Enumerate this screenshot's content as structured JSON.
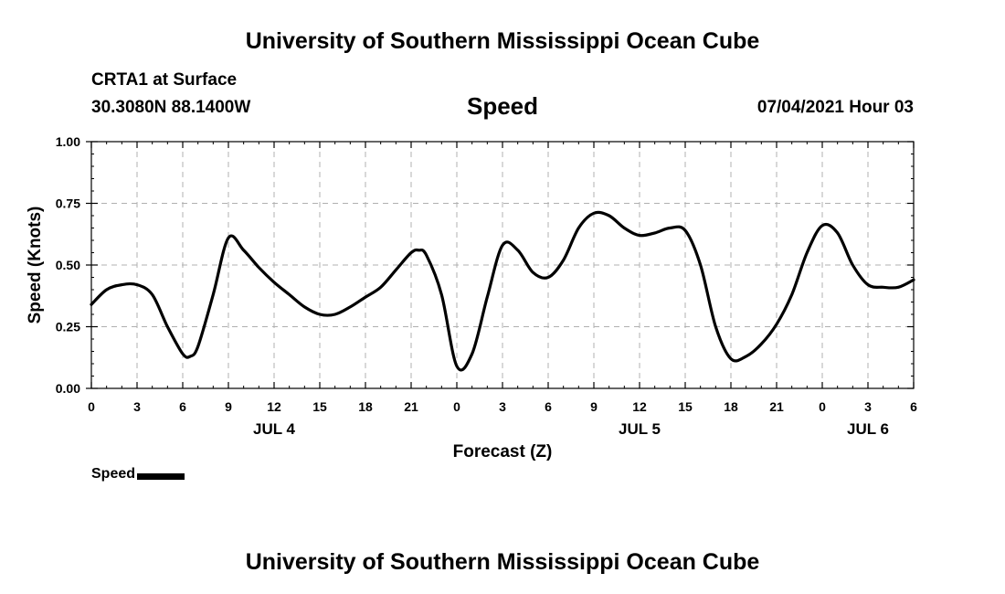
{
  "header": {
    "title": "University of Southern Mississippi Ocean Cube",
    "station": "CRTA1 at Surface",
    "coords": "30.3080N  88.1400W",
    "chart_heading": "Speed",
    "datetime": "07/04/2021 Hour 03"
  },
  "footer": {
    "title": "University of Southern Mississippi Ocean Cube"
  },
  "legend": {
    "label": "Speed"
  },
  "chart_data": {
    "type": "line",
    "title": "Speed",
    "xlabel": "Forecast (Z)",
    "ylabel": "Speed (Knots)",
    "xlim": [
      0,
      54
    ],
    "ylim": [
      0,
      1
    ],
    "grid": true,
    "legend_position": "bottom-left",
    "y_ticks": [
      0,
      0.25,
      0.5,
      0.75,
      1.0
    ],
    "y_tick_labels": [
      "0.00",
      "0.25",
      "0.50",
      "0.75",
      "1.00"
    ],
    "x_ticks": [
      0,
      3,
      6,
      9,
      12,
      15,
      18,
      21,
      24,
      27,
      30,
      33,
      36,
      39,
      42,
      45,
      48,
      51,
      54
    ],
    "x_tick_labels": [
      "0",
      "3",
      "6",
      "9",
      "12",
      "15",
      "18",
      "21",
      "0",
      "3",
      "6",
      "9",
      "12",
      "15",
      "18",
      "21",
      "0",
      "3",
      "6"
    ],
    "day_labels": [
      {
        "label": "JUL 4",
        "x": 12
      },
      {
        "label": "JUL 5",
        "x": 36
      },
      {
        "label": "JUL 6",
        "x": 51
      }
    ],
    "series": [
      {
        "name": "Speed",
        "color": "#000000",
        "x": [
          0,
          1,
          2,
          3,
          4,
          5,
          6,
          6.5,
          7,
          8,
          9,
          10,
          11,
          12,
          13,
          14,
          15,
          16,
          17,
          18,
          19,
          20,
          21,
          21.5,
          22,
          23,
          24,
          25,
          26,
          27,
          28,
          29,
          30,
          31,
          32,
          33,
          34,
          35,
          36,
          37,
          38,
          39,
          40,
          41,
          42,
          43,
          44,
          45,
          46,
          47,
          48,
          49,
          50,
          51,
          52,
          53,
          54
        ],
        "values": [
          0.34,
          0.4,
          0.42,
          0.42,
          0.38,
          0.25,
          0.14,
          0.13,
          0.17,
          0.38,
          0.61,
          0.56,
          0.49,
          0.43,
          0.38,
          0.33,
          0.3,
          0.3,
          0.33,
          0.37,
          0.41,
          0.48,
          0.55,
          0.56,
          0.54,
          0.38,
          0.09,
          0.14,
          0.37,
          0.58,
          0.56,
          0.47,
          0.45,
          0.52,
          0.65,
          0.71,
          0.7,
          0.65,
          0.62,
          0.63,
          0.65,
          0.64,
          0.5,
          0.25,
          0.12,
          0.13,
          0.18,
          0.26,
          0.38,
          0.55,
          0.66,
          0.63,
          0.5,
          0.42,
          0.41,
          0.41,
          0.44
        ]
      }
    ]
  }
}
